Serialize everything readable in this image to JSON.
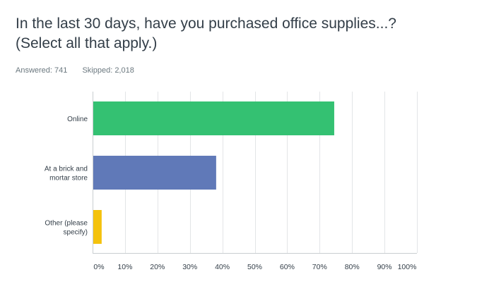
{
  "question": {
    "title_line1": "In the last 30 days, have you purchased office supplies...?",
    "title_line2": "(Select all that apply.)"
  },
  "stats": {
    "answered": "Answered: 741",
    "skipped": "Skipped: 2,018"
  },
  "colors": {
    "online": "#34c172",
    "brick": "#6079b8",
    "other": "#f4c20d",
    "grid": "#e3e5e7"
  },
  "chart_data": {
    "type": "bar",
    "orientation": "horizontal",
    "categories": [
      [
        "Online"
      ],
      [
        "At a brick and",
        "mortar store"
      ],
      [
        "Other (please",
        "specify)"
      ]
    ],
    "values": [
      74.5,
      38.1,
      2.8
    ],
    "x_ticks": [
      "0%",
      "10%",
      "20%",
      "30%",
      "40%",
      "50%",
      "60%",
      "70%",
      "80%",
      "90%",
      "100%"
    ],
    "xlim": [
      0,
      100
    ],
    "grid": true
  }
}
